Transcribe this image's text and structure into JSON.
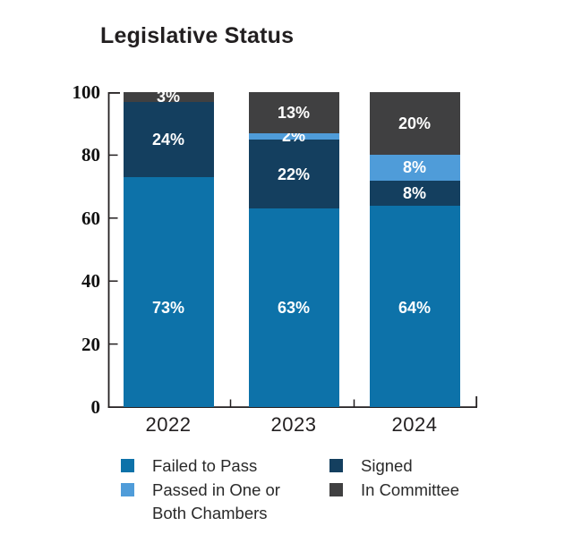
{
  "title": "Legislative Status",
  "colors": {
    "failed": "#0D72A9",
    "passed": "#4F9CD9",
    "signed": "#143F5F",
    "committee": "#404041",
    "axis": "#231F20",
    "bar_label": "#FFFFFF"
  },
  "chart_data": {
    "type": "bar",
    "stacked": true,
    "title": "Legislative Status",
    "categories": [
      "2022",
      "2023",
      "2024"
    ],
    "series": [
      {
        "name": "Failed to Pass",
        "color_key": "failed",
        "values": [
          73,
          63,
          64
        ]
      },
      {
        "name": "Signed",
        "color_key": "signed",
        "values": [
          24,
          22,
          8
        ]
      },
      {
        "name": "Passed in One or Both Chambers",
        "color_key": "passed",
        "values": [
          0,
          2,
          8
        ]
      },
      {
        "name": "In Committee",
        "color_key": "committee",
        "values": [
          3,
          13,
          20
        ]
      }
    ],
    "stack_order": "bottom_to_top",
    "value_suffix": "%",
    "ylim": [
      0,
      100
    ],
    "yticks": [
      0,
      20,
      40,
      60,
      80,
      100
    ],
    "grid": false,
    "legend_position": "bottom"
  },
  "legend": {
    "items": [
      {
        "label": "Failed to Pass",
        "color_key": "failed"
      },
      {
        "label": "Passed in One or Both Chambers",
        "color_key": "passed"
      },
      {
        "label": "Signed",
        "color_key": "signed"
      },
      {
        "label": "In Committee",
        "color_key": "committee"
      }
    ]
  }
}
